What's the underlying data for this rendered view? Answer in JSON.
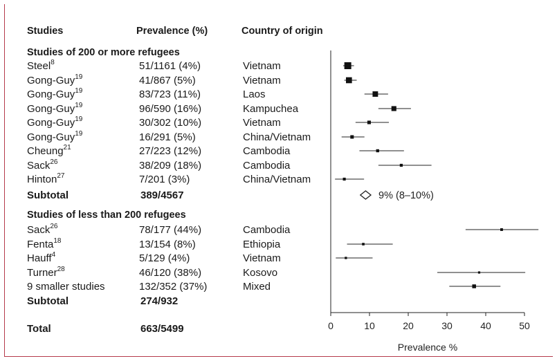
{
  "headers": {
    "studies": "Studies",
    "prevalence": "Prevalence (%)",
    "country": "Country of origin"
  },
  "groups": [
    {
      "title": "Studies of 200 or more refugees",
      "rows": [
        {
          "study": "Steel",
          "ref": "8",
          "prevalence": "51/1161 (4%)",
          "country": "Vietnam"
        },
        {
          "study": "Gong-Guy",
          "ref": "19",
          "prevalence": "41/867 (5%)",
          "country": "Vietnam"
        },
        {
          "study": "Gong-Guy",
          "ref": "19",
          "prevalence": "83/723 (11%)",
          "country": "Laos"
        },
        {
          "study": "Gong-Guy",
          "ref": "19",
          "prevalence": "96/590 (16%)",
          "country": "Kampuchea"
        },
        {
          "study": "Gong-Guy",
          "ref": "19",
          "prevalence": "30/302 (10%)",
          "country": "Vietnam"
        },
        {
          "study": "Gong-Guy",
          "ref": "19",
          "prevalence": "16/291 (5%)",
          "country": "China/Vietnam"
        },
        {
          "study": "Cheung",
          "ref": "21",
          "prevalence": "27/223 (12%)",
          "country": "Cambodia"
        },
        {
          "study": "Sack",
          "ref": "26",
          "prevalence": "38/209 (18%)",
          "country": "Cambodia"
        },
        {
          "study": "Hinton",
          "ref": "27",
          "prevalence": "7/201 (3%)",
          "country": "China/Vietnam"
        }
      ],
      "subtotal_label": "Subtotal",
      "subtotal_value": "389/4567",
      "pooled_label": "9% (8–10%)"
    },
    {
      "title": "Studies of less than 200 refugees",
      "rows": [
        {
          "study": "Sack",
          "ref": "26",
          "prevalence": "78/177 (44%)",
          "country": "Cambodia"
        },
        {
          "study": "Fenta",
          "ref": "18",
          "prevalence": "13/154 (8%)",
          "country": "Ethiopia"
        },
        {
          "study": "Hauff",
          "ref": "4",
          "prevalence": "5/129 (4%)",
          "country": "Vietnam"
        },
        {
          "study": "Turner",
          "ref": "28",
          "prevalence": "46/120 (38%)",
          "country": "Kosovo"
        },
        {
          "study": "9 smaller studies",
          "ref": "",
          "prevalence": "132/352 (37%)",
          "country": "Mixed"
        }
      ],
      "subtotal_label": "Subtotal",
      "subtotal_value": "274/932"
    }
  ],
  "total_label": "Total",
  "total_value": "663/5499",
  "chart_data": {
    "type": "scatter",
    "xlabel": "Prevalence %",
    "xlim": [
      0,
      50
    ],
    "xticks": [
      0,
      10,
      20,
      30,
      40,
      50
    ],
    "series": [
      {
        "estimate": 4.4,
        "ci": [
          3.2,
          6.0
        ],
        "weight": 1161
      },
      {
        "estimate": 4.7,
        "ci": [
          3.5,
          6.7
        ],
        "weight": 867
      },
      {
        "estimate": 11.5,
        "ci": [
          8.7,
          14.8
        ],
        "weight": 723
      },
      {
        "estimate": 16.3,
        "ci": [
          12.3,
          20.7
        ],
        "weight": 590
      },
      {
        "estimate": 9.9,
        "ci": [
          6.4,
          15.0
        ],
        "weight": 302
      },
      {
        "estimate": 5.5,
        "ci": [
          2.8,
          8.7
        ],
        "weight": 291
      },
      {
        "estimate": 12.1,
        "ci": [
          7.4,
          18.9
        ],
        "weight": 223
      },
      {
        "estimate": 18.2,
        "ci": [
          12.3,
          26.0
        ],
        "weight": 209
      },
      {
        "estimate": 3.5,
        "ci": [
          1.1,
          8.6
        ],
        "weight": 201
      },
      {
        "estimate": 44.1,
        "ci": [
          34.8,
          53.6
        ],
        "weight": 177
      },
      {
        "estimate": 8.4,
        "ci": [
          4.2,
          16.0
        ],
        "weight": 154
      },
      {
        "estimate": 3.9,
        "ci": [
          1.3,
          10.8
        ],
        "weight": 129
      },
      {
        "estimate": 38.3,
        "ci": [
          27.5,
          50.2
        ],
        "weight": 120
      },
      {
        "estimate": 37.0,
        "ci": [
          30.6,
          43.8
        ],
        "weight": 352
      }
    ],
    "pooled": {
      "estimate": 9,
      "ci": [
        8,
        10
      ]
    }
  }
}
